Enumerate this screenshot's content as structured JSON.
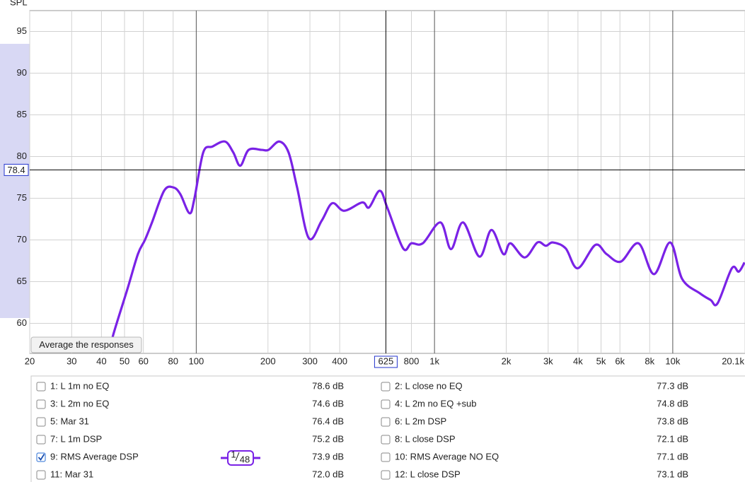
{
  "chart_data": {
    "type": "line",
    "y_axis_label": "SPL",
    "xscale": "log",
    "grid": true,
    "color": "#7a22e6",
    "x": [
      43.3,
      44.8,
      51.4,
      56.9,
      60.9,
      65.2,
      73.3,
      80.1,
      85.7,
      93.7,
      98.3,
      107,
      117,
      132,
      143,
      153,
      166,
      188,
      201,
      223,
      244,
      265,
      297,
      336,
      372,
      418,
      497,
      531,
      589,
      635,
      738,
      800,
      893,
      1059,
      1173,
      1318,
      1543,
      1733,
      1946,
      2084,
      2390,
      2704,
      2932,
      3140,
      3550,
      3990,
      4732,
      5277,
      6052,
      7178,
      8340,
      9750,
      10960,
      13000,
      14420,
      15420,
      17700,
      18920,
      20000
    ],
    "values": [
      56.5,
      58.6,
      64.1,
      68.3,
      70.0,
      72.1,
      75.9,
      76.3,
      75.5,
      73.2,
      75.0,
      80.5,
      81.2,
      81.8,
      80.5,
      78.9,
      80.8,
      80.8,
      80.8,
      81.8,
      80.5,
      76.3,
      70.2,
      72.3,
      74.4,
      73.5,
      74.5,
      73.9,
      75.9,
      73.8,
      69.0,
      69.6,
      69.6,
      72.1,
      68.9,
      72.1,
      68.0,
      71.2,
      68.3,
      69.6,
      67.9,
      69.7,
      69.3,
      69.7,
      69.0,
      66.6,
      69.4,
      68.3,
      67.4,
      69.6,
      65.9,
      69.7,
      65.3,
      63.6,
      62.8,
      62.4,
      66.6,
      66.2,
      67.3
    ],
    "xlim": [
      20,
      20100
    ],
    "ylim": [
      56.4,
      97.5
    ],
    "xticks": [
      20,
      30,
      40,
      50,
      60,
      80,
      100,
      200,
      300,
      400,
      800,
      {
        "value": 1000,
        "label": "1k"
      },
      {
        "value": 2000,
        "label": "2k"
      },
      {
        "value": 3000,
        "label": "3k"
      },
      {
        "value": 4000,
        "label": "4k"
      },
      {
        "value": 5000,
        "label": "5k"
      },
      {
        "value": 6000,
        "label": "6k"
      },
      {
        "value": 8000,
        "label": "8k"
      },
      {
        "value": 10000,
        "label": "10k"
      },
      {
        "value": 20100,
        "label": "20.1k"
      }
    ],
    "yticks": [
      60,
      65,
      70,
      75,
      80,
      85,
      90,
      95
    ],
    "cursor": {
      "x": 625,
      "y": 78.4
    }
  },
  "button": "Average the responses",
  "smoothing": {
    "numerator": "1",
    "denominator": "48"
  },
  "measurements": [
    {
      "name": "1: L 1m no EQ",
      "level": "78.6 dB",
      "color": "#b51818",
      "checked": false
    },
    {
      "name": "2: L close no EQ",
      "level": "77.3 dB",
      "color": "#0b6b4a",
      "checked": false
    },
    {
      "name": "3: L 2m no EQ",
      "level": "74.6 dB",
      "color": "#4a48cc",
      "checked": false
    },
    {
      "name": "4: L 2m no EQ +sub",
      "level": "74.8 dB",
      "color": "#d9730b",
      "checked": false
    },
    {
      "name": "5: Mar 31",
      "level": "76.4 dB",
      "color": "#179a17",
      "checked": false
    },
    {
      "name": "6: L 2m DSP",
      "level": "73.8 dB",
      "color": "#1b62b6",
      "checked": false
    },
    {
      "name": "7: L 1m DSP",
      "level": "75.2 dB",
      "color": "#b5690c",
      "checked": false
    },
    {
      "name": "8: L close DSP",
      "level": "72.1 dB",
      "color": "#0b7b88",
      "checked": false
    },
    {
      "name": "9: RMS Average DSP",
      "level": "73.9 dB",
      "color": "#7a22e6",
      "checked": true
    },
    {
      "name": "10: RMS Average NO EQ",
      "level": "77.1 dB",
      "color": "#b421b4",
      "checked": false
    },
    {
      "name": "11: Mar 31",
      "level": "72.0 dB",
      "color": "#c41414",
      "checked": false
    },
    {
      "name": "12: L close DSP",
      "level": "73.1 dB",
      "color": "#0b6b4a",
      "checked": false
    }
  ]
}
